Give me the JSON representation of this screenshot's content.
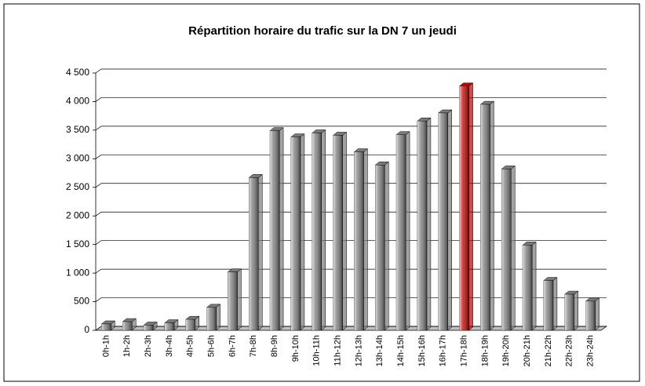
{
  "chart_data": {
    "type": "bar",
    "title": "Répartition horaire du trafic sur la DN 7 un jeudi",
    "categories": [
      "0h-1h",
      "1h-2h",
      "2h-3h",
      "3h-4h",
      "4h-5h",
      "5h-6h",
      "6h-7h",
      "7h-8h",
      "8h-9h",
      "9h-10h",
      "10h-11h",
      "11h-12h",
      "12h-13h",
      "13h-14h",
      "14h-15h",
      "15h-16h",
      "16h-17h",
      "17h-18h",
      "18h-19h",
      "19h-20h",
      "20h-21h",
      "21h-22h",
      "22h-23h",
      "23h-24h"
    ],
    "values": [
      110,
      150,
      90,
      130,
      190,
      400,
      1020,
      2670,
      3490,
      3380,
      3450,
      3410,
      3120,
      2890,
      3420,
      3660,
      3800,
      4270,
      3950,
      2820,
      1490,
      870,
      630,
      510
    ],
    "colors": [
      "#7a7a7a",
      "#7a7a7a",
      "#7a7a7a",
      "#7a7a7a",
      "#7a7a7a",
      "#7a7a7a",
      "#7a7a7a",
      "#7a7a7a",
      "#7a7a7a",
      "#7a7a7a",
      "#7a7a7a",
      "#7a7a7a",
      "#7a7a7a",
      "#7a7a7a",
      "#7a7a7a",
      "#7a7a7a",
      "#7a7a7a",
      "#c00000",
      "#7a7a7a",
      "#7a7a7a",
      "#7a7a7a",
      "#7a7a7a",
      "#7a7a7a",
      "#7a7a7a"
    ],
    "ylim": [
      0,
      4500
    ],
    "yticks": [
      0,
      500,
      {
        "value": 1000,
        "label": "1 000"
      },
      {
        "value": 1500,
        "label": "1 500"
      },
      {
        "value": 2000,
        "label": "2 000"
      },
      {
        "value": 2500,
        "label": "2 500"
      },
      {
        "value": 3000,
        "label": "3 000"
      },
      {
        "value": 3500,
        "label": "3 500"
      },
      {
        "value": 4000,
        "label": "4 000"
      },
      {
        "value": 4500,
        "label": "4 500"
      }
    ],
    "grid": true
  }
}
